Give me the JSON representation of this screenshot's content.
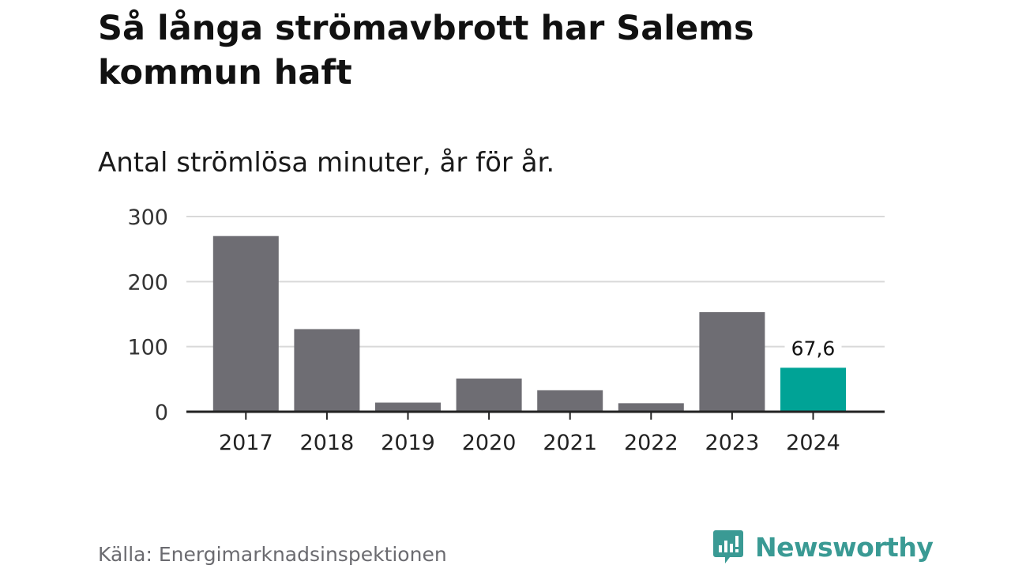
{
  "title": "Så långa strömavbrott har Salems kommun haft",
  "subtitle": "Antal strömlösa minuter, år för år.",
  "source": "Källa: Energimarknadsinspektionen",
  "logo_text": "Newsworthy",
  "colors": {
    "bar": "#6e6d73",
    "highlight": "#00a396",
    "grid": "#d9d9d9",
    "axis": "#222222",
    "logo": "#3a9a94"
  },
  "chart_data": {
    "type": "bar",
    "categories": [
      "2017",
      "2018",
      "2019",
      "2020",
      "2021",
      "2022",
      "2023",
      "2024"
    ],
    "values": [
      270,
      127,
      14,
      51,
      33,
      13,
      153,
      67.6
    ],
    "highlight_index": 7,
    "data_labels": [
      {
        "index": 7,
        "text": "67,6"
      }
    ],
    "yticks": [
      "0",
      "100",
      "200",
      "300"
    ],
    "ytick_values": [
      0,
      100,
      200,
      300
    ],
    "ylim": [
      0,
      300
    ],
    "grid": true,
    "legend": "none"
  }
}
